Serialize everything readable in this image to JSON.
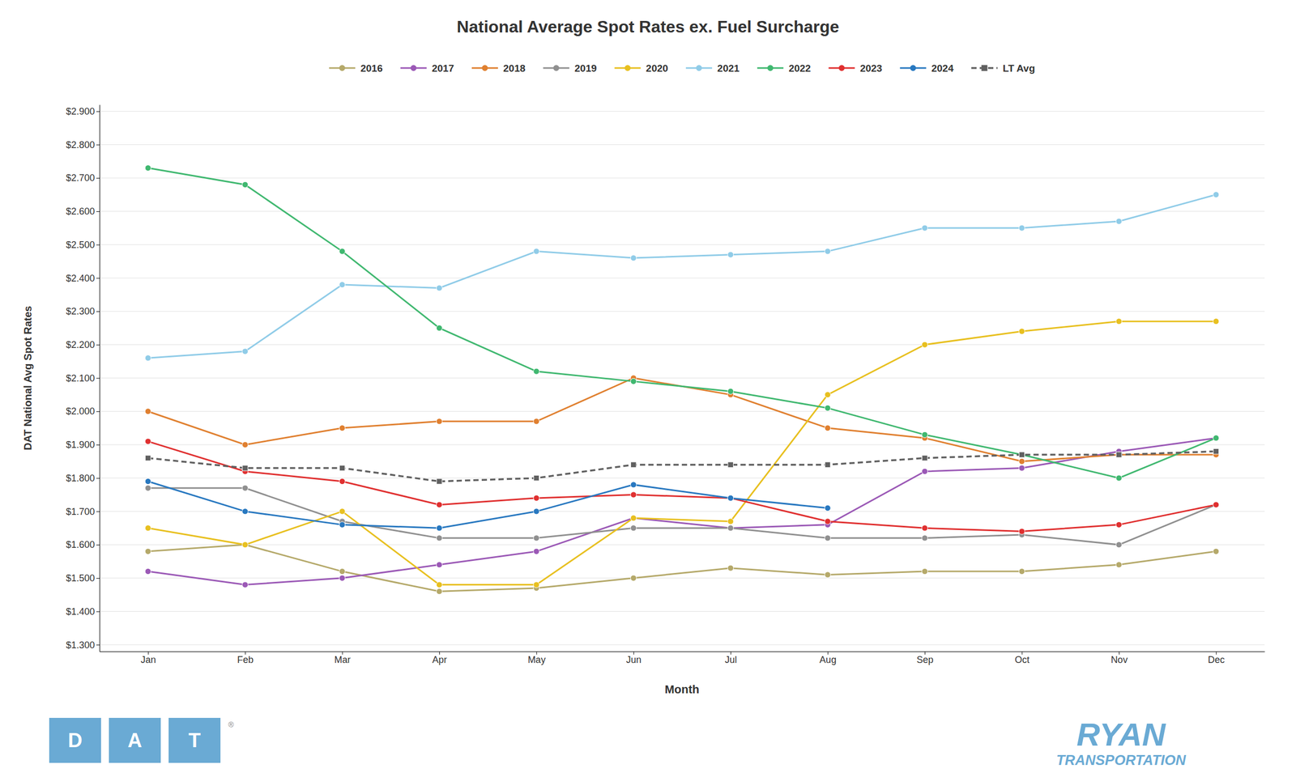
{
  "chart_data": {
    "type": "line",
    "title": "National Average Spot Rates ex. Fuel Surcharge",
    "x_label": "Month",
    "y_label": "DAT National Avg Spot Rates",
    "categories": [
      "Jan",
      "Feb",
      "Mar",
      "Apr",
      "May",
      "Jun",
      "Jul",
      "Aug",
      "Sep",
      "Oct",
      "Nov",
      "Dec"
    ],
    "ylim": [
      1.28,
      2.92
    ],
    "yticks": [
      {
        "value": 1.3,
        "label": "$1.300"
      },
      {
        "value": 1.4,
        "label": "$1.400"
      },
      {
        "value": 1.5,
        "label": "$1.500"
      },
      {
        "value": 1.6,
        "label": "$1.600"
      },
      {
        "value": 1.7,
        "label": "$1.700"
      },
      {
        "value": 1.8,
        "label": "$1.800"
      },
      {
        "value": 1.9,
        "label": "$1.900"
      },
      {
        "value": 2.0,
        "label": "$2.000"
      },
      {
        "value": 2.1,
        "label": "$2.100"
      },
      {
        "value": 2.2,
        "label": "$2.200"
      },
      {
        "value": 2.3,
        "label": "$2.300"
      },
      {
        "value": 2.4,
        "label": "$2.400"
      },
      {
        "value": 2.5,
        "label": "$2.500"
      },
      {
        "value": 2.6,
        "label": "$2.600"
      },
      {
        "value": 2.7,
        "label": "$2.700"
      },
      {
        "value": 2.8,
        "label": "$2.800"
      },
      {
        "value": 2.9,
        "label": "$2.900"
      }
    ],
    "grid": true,
    "legend": "top",
    "series": [
      {
        "name": "2016",
        "color": "#b5a96a",
        "marker": "circle",
        "line_style": "solid",
        "values": [
          1.58,
          1.6,
          1.52,
          1.46,
          1.47,
          1.5,
          1.53,
          1.51,
          1.52,
          1.52,
          1.54,
          1.58
        ]
      },
      {
        "name": "2017",
        "color": "#9b59b6",
        "marker": "circle",
        "line_style": "solid",
        "values": [
          1.52,
          1.48,
          1.5,
          1.54,
          1.58,
          1.68,
          1.65,
          1.66,
          1.82,
          1.83,
          1.88,
          1.92
        ]
      },
      {
        "name": "2018",
        "color": "#e08030",
        "marker": "circle",
        "line_style": "solid",
        "values": [
          2.0,
          1.9,
          1.95,
          1.97,
          1.97,
          2.1,
          2.05,
          1.95,
          1.92,
          1.85,
          1.87,
          1.87
        ]
      },
      {
        "name": "2019",
        "color": "#909090",
        "marker": "circle",
        "line_style": "solid",
        "values": [
          1.77,
          1.77,
          1.67,
          1.62,
          1.62,
          1.65,
          1.65,
          1.62,
          1.62,
          1.63,
          1.6,
          1.72
        ]
      },
      {
        "name": "2020",
        "color": "#e8c020",
        "marker": "circle",
        "line_style": "solid",
        "values": [
          1.65,
          1.6,
          1.7,
          1.48,
          1.48,
          1.68,
          1.67,
          2.05,
          2.2,
          2.24,
          2.27,
          2.27
        ]
      },
      {
        "name": "2021",
        "color": "#90cce8",
        "marker": "circle",
        "line_style": "solid",
        "values": [
          2.16,
          2.18,
          2.38,
          2.37,
          2.48,
          2.46,
          2.47,
          2.48,
          2.55,
          2.55,
          2.57,
          2.65
        ]
      },
      {
        "name": "2022",
        "color": "#40b870",
        "marker": "circle",
        "line_style": "solid",
        "values": [
          2.73,
          2.68,
          2.48,
          2.25,
          2.12,
          2.09,
          2.06,
          2.01,
          1.93,
          1.87,
          1.8,
          1.92
        ]
      },
      {
        "name": "2023",
        "color": "#e03030",
        "marker": "circle",
        "line_style": "solid",
        "values": [
          1.91,
          1.82,
          1.79,
          1.72,
          1.74,
          1.75,
          1.74,
          1.67,
          1.65,
          1.64,
          1.66,
          1.72
        ]
      },
      {
        "name": "2024",
        "color": "#2878c0",
        "marker": "circle",
        "line_style": "solid",
        "values": [
          1.79,
          1.7,
          1.66,
          1.65,
          1.7,
          1.78,
          1.74,
          1.71,
          null,
          null,
          null,
          null
        ]
      },
      {
        "name": "LT Avg",
        "color": "#606060",
        "marker": "square",
        "line_style": "dashed",
        "values": [
          1.86,
          1.83,
          1.83,
          1.79,
          1.8,
          1.84,
          1.84,
          1.84,
          1.86,
          1.87,
          1.87,
          1.88
        ]
      }
    ],
    "annotations": [
      {
        "text": "D",
        "color": "#6aaad4"
      },
      {
        "text": "A",
        "color": "#6aaad4"
      },
      {
        "text": "T",
        "color": "#6aaad4"
      },
      {
        "text": "®",
        "color": "#808080"
      },
      {
        "text": "RYAN",
        "color": "#6aaad4"
      },
      {
        "text": "TRANSPORTATION",
        "color": "#6aaad4"
      }
    ]
  }
}
